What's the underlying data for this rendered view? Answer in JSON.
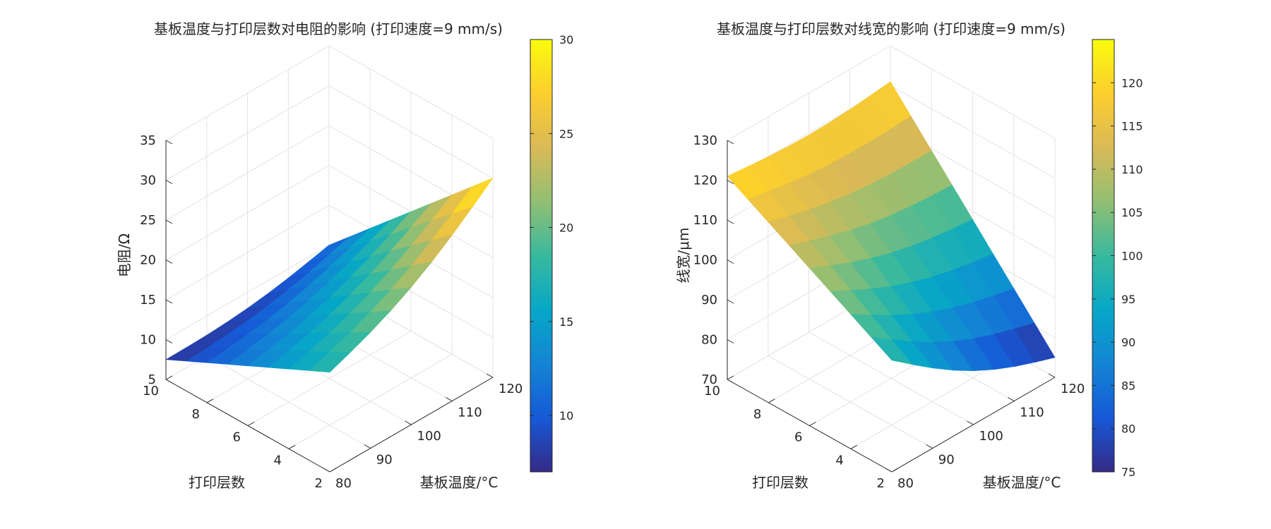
{
  "chart_data": [
    {
      "type": "surface",
      "title": "基板温度与打印层数对电阻的影响 (打印速度=9 mm/s)",
      "xlabel": "基板温度/°C",
      "ylabel": "打印层数",
      "zlabel": "电阻/Ω",
      "xlim": [
        80,
        120
      ],
      "ylim": [
        2,
        10
      ],
      "zlim": [
        5,
        35
      ],
      "x_ticks": [
        "80",
        "90",
        "100",
        "110",
        "120"
      ],
      "y_ticks": [
        "2",
        "4",
        "6",
        "8",
        "10"
      ],
      "z_ticks": [
        "5",
        "10",
        "15",
        "20",
        "25",
        "30",
        "35"
      ],
      "colorbar": {
        "limits": [
          7,
          30
        ],
        "ticks": [
          "10",
          "15",
          "20",
          "25",
          "30"
        ],
        "colormap": "parula"
      },
      "surface": {
        "temperatures": [
          80,
          85,
          90,
          95,
          100,
          105,
          110,
          115,
          120
        ],
        "layers": [
          2,
          3,
          4,
          5,
          6,
          7,
          8,
          9,
          10
        ],
        "corner_values": {
          "temp80_layer2": 17.5,
          "temp120_layer2": 30,
          "temp80_layer10": 7.5,
          "temp120_layer10": 10
        }
      }
    },
    {
      "type": "surface",
      "title": "基板温度与打印层数对线宽的影响 (打印速度=9 mm/s)",
      "xlabel": "基板温度/°C",
      "ylabel": "打印层数",
      "zlabel": "线宽/μm",
      "xlim": [
        80,
        120
      ],
      "ylim": [
        2,
        10
      ],
      "zlim": [
        70,
        130
      ],
      "x_ticks": [
        "80",
        "90",
        "100",
        "110",
        "120"
      ],
      "y_ticks": [
        "2",
        "4",
        "6",
        "8",
        "10"
      ],
      "z_ticks": [
        "70",
        "80",
        "90",
        "100",
        "110",
        "120",
        "130"
      ],
      "colorbar": {
        "limits": [
          75,
          125
        ],
        "ticks": [
          "75",
          "80",
          "85",
          "90",
          "95",
          "100",
          "105",
          "110",
          "115",
          "120"
        ],
        "colormap": "parula"
      },
      "surface": {
        "temperatures": [
          80,
          85,
          90,
          95,
          100,
          105,
          110,
          115,
          120
        ],
        "layers": [
          2,
          3,
          4,
          5,
          6,
          7,
          8,
          9,
          10
        ],
        "corner_values": {
          "temp80_layer2": 98,
          "temp120_layer2": 75,
          "temp80_layer10": 121,
          "temp120_layer10": 121
        }
      }
    }
  ]
}
